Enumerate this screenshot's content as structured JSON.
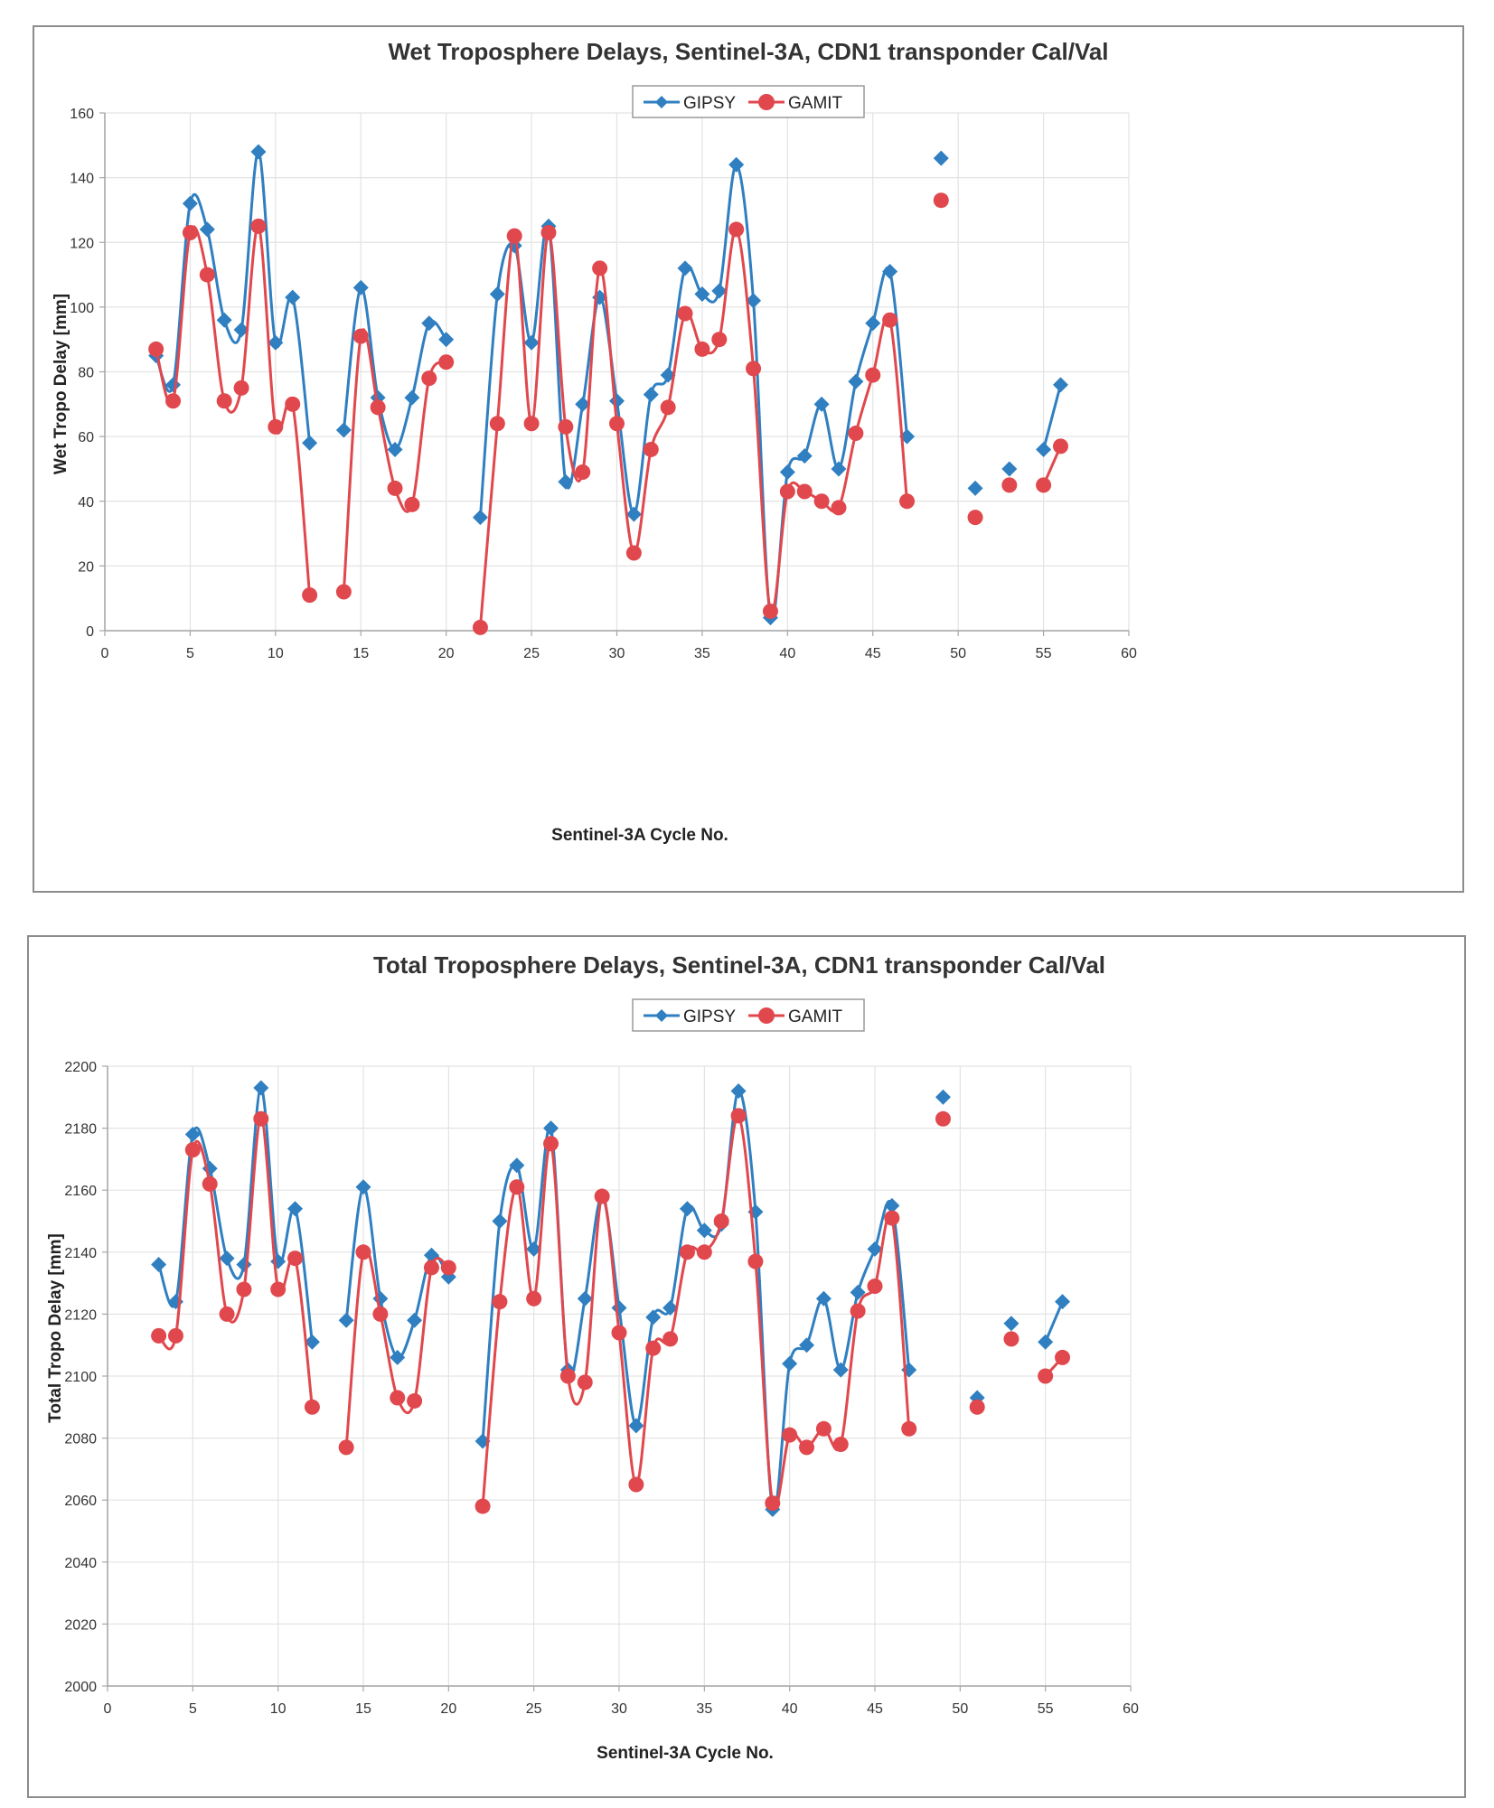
{
  "colors": {
    "gipsy": "#2f7fc1",
    "gamit": "#e0484d",
    "grid": "#e3e3e3",
    "axis": "#a6a6a6"
  },
  "chart_data": [
    {
      "type": "line",
      "title": "Wet Troposphere Delays, Sentinel-3A, CDN1 transponder Cal/Val",
      "xlabel": "Sentinel-3A Cycle No.",
      "ylabel": "Wet Tropo Delay [mm]",
      "xlim": [
        0,
        60
      ],
      "ylim": [
        0,
        160
      ],
      "xticks": [
        0,
        5,
        10,
        15,
        20,
        25,
        30,
        35,
        40,
        45,
        50,
        55,
        60
      ],
      "yticks": [
        0,
        20,
        40,
        60,
        80,
        100,
        120,
        140,
        160
      ],
      "legend_position": "top-center",
      "series": [
        {
          "name": "GIPSY",
          "marker": "diamond",
          "color": "#2f7fc1",
          "segments": [
            [
              [
                3,
                85
              ],
              [
                4,
                76
              ],
              [
                5,
                132
              ],
              [
                6,
                124
              ],
              [
                7,
                96
              ],
              [
                8,
                93
              ],
              [
                9,
                148
              ],
              [
                10,
                89
              ],
              [
                11,
                103
              ],
              [
                12,
                58
              ]
            ],
            [
              [
                14,
                62
              ],
              [
                15,
                106
              ],
              [
                16,
                72
              ],
              [
                17,
                56
              ],
              [
                18,
                72
              ],
              [
                19,
                95
              ],
              [
                20,
                90
              ]
            ],
            [
              [
                22,
                35
              ],
              [
                23,
                104
              ],
              [
                24,
                119
              ],
              [
                25,
                89
              ],
              [
                26,
                125
              ],
              [
                27,
                46
              ],
              [
                28,
                70
              ],
              [
                29,
                103
              ],
              [
                30,
                71
              ],
              [
                31,
                36
              ],
              [
                32,
                73
              ],
              [
                33,
                79
              ],
              [
                34,
                112
              ],
              [
                35,
                104
              ],
              [
                36,
                105
              ],
              [
                37,
                144
              ],
              [
                38,
                102
              ],
              [
                39,
                4
              ],
              [
                40,
                49
              ],
              [
                41,
                54
              ],
              [
                42,
                70
              ],
              [
                43,
                50
              ],
              [
                44,
                77
              ],
              [
                45,
                95
              ],
              [
                46,
                111
              ],
              [
                47,
                60
              ]
            ],
            [
              [
                49,
                146
              ]
            ],
            [
              [
                51,
                44
              ]
            ],
            [
              [
                53,
                50
              ]
            ],
            [
              [
                55,
                56
              ],
              [
                56,
                76
              ]
            ]
          ]
        },
        {
          "name": "GAMIT",
          "marker": "circle",
          "color": "#e0484d",
          "segments": [
            [
              [
                3,
                87
              ],
              [
                4,
                71
              ],
              [
                5,
                123
              ],
              [
                6,
                110
              ],
              [
                7,
                71
              ],
              [
                8,
                75
              ],
              [
                9,
                125
              ],
              [
                10,
                63
              ],
              [
                11,
                70
              ],
              [
                12,
                11
              ]
            ],
            [
              [
                14,
                12
              ],
              [
                15,
                91
              ],
              [
                16,
                69
              ],
              [
                17,
                44
              ],
              [
                18,
                39
              ],
              [
                19,
                78
              ],
              [
                20,
                83
              ]
            ],
            [
              [
                22,
                1
              ],
              [
                23,
                64
              ],
              [
                24,
                122
              ],
              [
                25,
                64
              ],
              [
                26,
                123
              ],
              [
                27,
                63
              ],
              [
                28,
                49
              ],
              [
                29,
                112
              ],
              [
                30,
                64
              ],
              [
                31,
                24
              ],
              [
                32,
                56
              ],
              [
                33,
                69
              ],
              [
                34,
                98
              ],
              [
                35,
                87
              ],
              [
                36,
                90
              ],
              [
                37,
                124
              ],
              [
                38,
                81
              ],
              [
                39,
                6
              ],
              [
                40,
                43
              ],
              [
                41,
                43
              ],
              [
                42,
                40
              ],
              [
                43,
                38
              ],
              [
                44,
                61
              ],
              [
                45,
                79
              ],
              [
                46,
                96
              ],
              [
                47,
                40
              ]
            ],
            [
              [
                49,
                133
              ]
            ],
            [
              [
                51,
                35
              ]
            ],
            [
              [
                53,
                45
              ]
            ],
            [
              [
                55,
                45
              ],
              [
                56,
                57
              ]
            ]
          ]
        }
      ]
    },
    {
      "type": "line",
      "title": "Total Troposphere Delays, Sentinel-3A, CDN1 transponder Cal/Val",
      "xlabel": "Sentinel-3A Cycle No.",
      "ylabel": "Total Tropo Delay [mm]",
      "xlim": [
        0,
        60
      ],
      "ylim": [
        2000,
        2200
      ],
      "xticks": [
        0,
        5,
        10,
        15,
        20,
        25,
        30,
        35,
        40,
        45,
        50,
        55,
        60
      ],
      "yticks": [
        2000,
        2020,
        2040,
        2060,
        2080,
        2100,
        2120,
        2140,
        2160,
        2180,
        2200
      ],
      "legend_position": "top-center",
      "series": [
        {
          "name": "GIPSY",
          "marker": "diamond",
          "color": "#2f7fc1",
          "segments": [
            [
              [
                3,
                2136
              ],
              [
                4,
                2124
              ],
              [
                5,
                2178
              ],
              [
                6,
                2167
              ],
              [
                7,
                2138
              ],
              [
                8,
                2136
              ],
              [
                9,
                2193
              ],
              [
                10,
                2137
              ],
              [
                11,
                2154
              ],
              [
                12,
                2111
              ]
            ],
            [
              [
                14,
                2118
              ],
              [
                15,
                2161
              ],
              [
                16,
                2125
              ],
              [
                17,
                2106
              ],
              [
                18,
                2118
              ],
              [
                19,
                2139
              ],
              [
                20,
                2132
              ]
            ],
            [
              [
                22,
                2079
              ],
              [
                23,
                2150
              ],
              [
                24,
                2168
              ],
              [
                25,
                2141
              ],
              [
                26,
                2180
              ],
              [
                27,
                2102
              ],
              [
                28,
                2125
              ],
              [
                29,
                2158
              ],
              [
                30,
                2122
              ],
              [
                31,
                2084
              ],
              [
                32,
                2119
              ],
              [
                33,
                2122
              ],
              [
                34,
                2154
              ],
              [
                35,
                2147
              ],
              [
                36,
                2149
              ],
              [
                37,
                2192
              ],
              [
                38,
                2153
              ],
              [
                39,
                2057
              ],
              [
                40,
                2104
              ],
              [
                41,
                2110
              ],
              [
                42,
                2125
              ],
              [
                43,
                2102
              ],
              [
                44,
                2127
              ],
              [
                45,
                2141
              ],
              [
                46,
                2155
              ],
              [
                47,
                2102
              ]
            ],
            [
              [
                49,
                2190
              ]
            ],
            [
              [
                51,
                2093
              ]
            ],
            [
              [
                53,
                2117
              ]
            ],
            [
              [
                55,
                2111
              ],
              [
                56,
                2124
              ]
            ]
          ]
        },
        {
          "name": "GAMIT",
          "marker": "circle",
          "color": "#e0484d",
          "segments": [
            [
              [
                3,
                2113
              ],
              [
                4,
                2113
              ],
              [
                5,
                2173
              ],
              [
                6,
                2162
              ],
              [
                7,
                2120
              ],
              [
                8,
                2128
              ],
              [
                9,
                2183
              ],
              [
                10,
                2128
              ],
              [
                11,
                2138
              ],
              [
                12,
                2090
              ]
            ],
            [
              [
                14,
                2077
              ],
              [
                15,
                2140
              ],
              [
                16,
                2120
              ],
              [
                17,
                2093
              ],
              [
                18,
                2092
              ],
              [
                19,
                2135
              ],
              [
                20,
                2135
              ]
            ],
            [
              [
                22,
                2058
              ],
              [
                23,
                2124
              ],
              [
                24,
                2161
              ],
              [
                25,
                2125
              ],
              [
                26,
                2175
              ],
              [
                27,
                2100
              ],
              [
                28,
                2098
              ],
              [
                29,
                2158
              ],
              [
                30,
                2114
              ],
              [
                31,
                2065
              ],
              [
                32,
                2109
              ],
              [
                33,
                2112
              ],
              [
                34,
                2140
              ],
              [
                35,
                2140
              ],
              [
                36,
                2150
              ],
              [
                37,
                2184
              ],
              [
                38,
                2137
              ],
              [
                39,
                2059
              ],
              [
                40,
                2081
              ],
              [
                41,
                2077
              ],
              [
                42,
                2083
              ],
              [
                43,
                2078
              ],
              [
                44,
                2121
              ],
              [
                45,
                2129
              ],
              [
                46,
                2151
              ],
              [
                47,
                2083
              ]
            ],
            [
              [
                49,
                2183
              ]
            ],
            [
              [
                51,
                2090
              ]
            ],
            [
              [
                53,
                2112
              ]
            ],
            [
              [
                55,
                2100
              ],
              [
                56,
                2106
              ]
            ]
          ]
        }
      ]
    }
  ]
}
